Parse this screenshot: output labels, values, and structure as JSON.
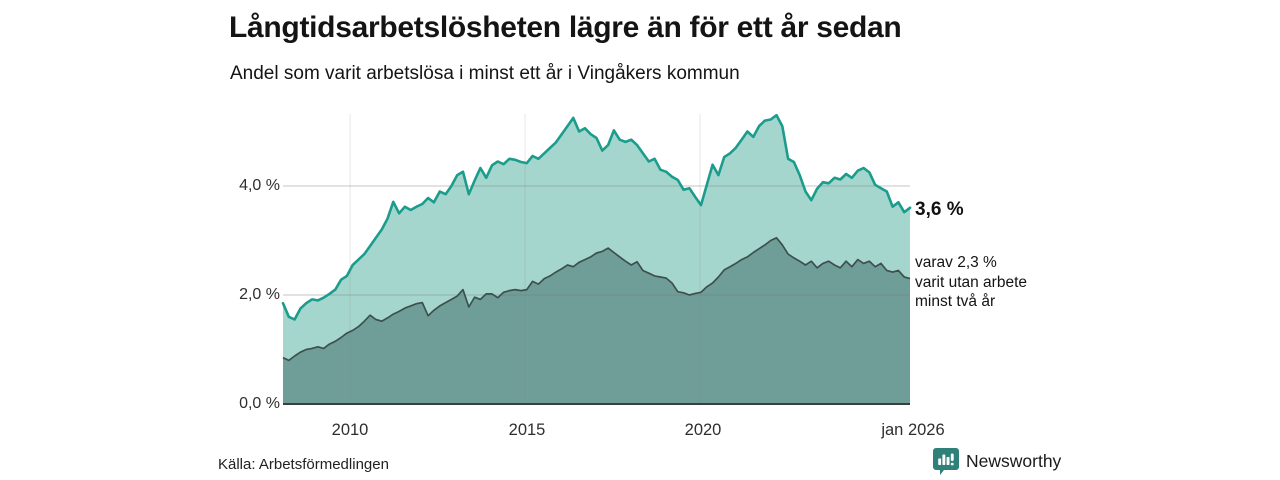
{
  "header": {
    "title": "Långtidsarbetslösheten lägre än för ett år sedan",
    "subtitle": "Andel som varit arbetslösa i minst ett år i Vingåkers kommun"
  },
  "chart_data": {
    "type": "area",
    "title": "Långtidsarbetslösheten lägre än för ett år sedan",
    "subtitle": "Andel som varit arbetslösa i minst ett år i Vingåkers kommun",
    "unit": "%",
    "x_range": [
      2008.083,
      2026.0
    ],
    "ylim": [
      0,
      5.5
    ],
    "grid": "horizontal",
    "legend_position": "right-end-labels",
    "x_ticks": [
      {
        "value": 2010,
        "label": "2010"
      },
      {
        "value": 2015,
        "label": "2015"
      },
      {
        "value": 2020,
        "label": "2020"
      },
      {
        "value": 2026.0,
        "label": "jan 2026"
      }
    ],
    "y_ticks": [
      {
        "value": 0,
        "label": "0,0 %"
      },
      {
        "value": 2,
        "label": "2,0 %"
      },
      {
        "value": 4,
        "label": "4,0 %"
      }
    ],
    "series": [
      {
        "name": "Andel arbetslösa minst ett år",
        "line_color": "#1b9c8c",
        "fill_color": "#a5d6ce",
        "end_value_label": "3,6 %",
        "values": [
          1.85,
          1.6,
          1.55,
          1.75,
          1.85,
          1.92,
          1.9,
          1.95,
          2.02,
          2.1,
          2.28,
          2.35,
          2.55,
          2.65,
          2.75,
          2.9,
          3.05,
          3.2,
          3.4,
          3.71,
          3.5,
          3.62,
          3.56,
          3.62,
          3.67,
          3.78,
          3.7,
          3.9,
          3.85,
          4.0,
          4.2,
          4.26,
          3.85,
          4.1,
          4.33,
          4.15,
          4.38,
          4.45,
          4.4,
          4.5,
          4.48,
          4.44,
          4.42,
          4.55,
          4.5,
          4.6,
          4.7,
          4.8,
          4.95,
          5.1,
          5.25,
          5.0,
          5.06,
          4.95,
          4.88,
          4.65,
          4.75,
          5.02,
          4.85,
          4.81,
          4.85,
          4.75,
          4.6,
          4.45,
          4.5,
          4.3,
          4.26,
          4.17,
          4.11,
          3.93,
          3.96,
          3.8,
          3.65,
          4.02,
          4.39,
          4.2,
          4.53,
          4.6,
          4.7,
          4.85,
          5.0,
          4.9,
          5.1,
          5.2,
          5.22,
          5.3,
          5.1,
          4.5,
          4.44,
          4.2,
          3.9,
          3.74,
          3.95,
          4.07,
          4.05,
          4.15,
          4.12,
          4.22,
          4.15,
          4.28,
          4.33,
          4.25,
          4.02,
          3.96,
          3.9,
          3.62,
          3.7,
          3.52,
          3.6
        ]
      },
      {
        "name": "varav varit utan arbete minst två år",
        "line_color": "#3e504d",
        "fill_color": "#6f9e99",
        "end_value_label": "varav 2,3 %\nvarit utan arbete\nminst två år",
        "values": [
          0.85,
          0.8,
          0.88,
          0.95,
          1.0,
          1.02,
          1.05,
          1.02,
          1.1,
          1.15,
          1.22,
          1.3,
          1.35,
          1.42,
          1.52,
          1.63,
          1.55,
          1.52,
          1.58,
          1.65,
          1.7,
          1.76,
          1.8,
          1.84,
          1.86,
          1.62,
          1.72,
          1.8,
          1.86,
          1.92,
          1.98,
          2.1,
          1.78,
          1.96,
          1.92,
          2.02,
          2.02,
          1.95,
          2.05,
          2.08,
          2.1,
          2.08,
          2.1,
          2.25,
          2.2,
          2.3,
          2.35,
          2.42,
          2.48,
          2.55,
          2.52,
          2.6,
          2.65,
          2.7,
          2.77,
          2.8,
          2.86,
          2.78,
          2.7,
          2.62,
          2.55,
          2.61,
          2.45,
          2.4,
          2.35,
          2.33,
          2.31,
          2.22,
          2.06,
          2.04,
          2.0,
          2.03,
          2.05,
          2.15,
          2.22,
          2.33,
          2.46,
          2.52,
          2.58,
          2.65,
          2.7,
          2.78,
          2.85,
          2.92,
          3.0,
          3.05,
          2.92,
          2.75,
          2.68,
          2.62,
          2.55,
          2.62,
          2.5,
          2.58,
          2.62,
          2.55,
          2.5,
          2.62,
          2.52,
          2.65,
          2.58,
          2.62,
          2.52,
          2.58,
          2.45,
          2.42,
          2.45,
          2.33,
          2.3
        ]
      }
    ]
  },
  "annotations": {
    "total_end": "3,6 %",
    "subset_end": "varav 2,3 %\nvarit utan arbete\nminst två år"
  },
  "footer": {
    "source": "Källa: Arbetsförmedlingen",
    "brand": "Newsworthy",
    "brand_color": "#2e7e77"
  }
}
